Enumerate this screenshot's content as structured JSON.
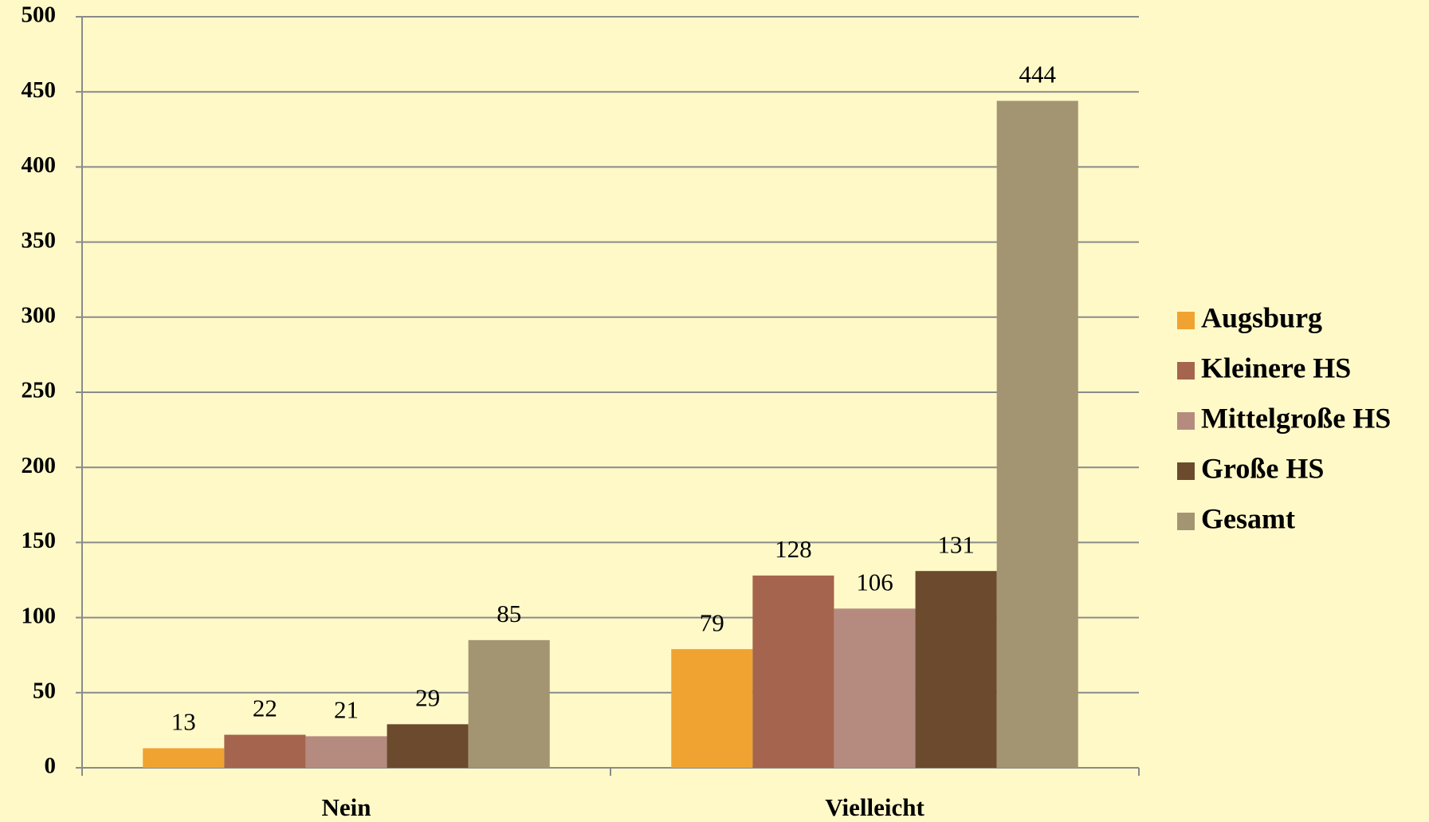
{
  "chart_data": {
    "type": "bar",
    "categories": [
      "Nein",
      "Vielleicht"
    ],
    "series": [
      {
        "name": "Augsburg",
        "color": "#f0a330",
        "values": [
          13,
          79
        ]
      },
      {
        "name": "Kleinere HS",
        "color": "#a5644e",
        "values": [
          22,
          128
        ]
      },
      {
        "name": "Mittelgroße HS",
        "color": "#b58b80",
        "values": [
          21,
          106
        ]
      },
      {
        "name": "Große HS",
        "color": "#6b4a2e",
        "values": [
          29,
          131
        ]
      },
      {
        "name": "Gesamt",
        "color": "#a39572",
        "values": [
          85,
          444
        ]
      }
    ],
    "ylim": [
      0,
      500
    ],
    "yticks": [
      0,
      50,
      100,
      150,
      200,
      250,
      300,
      350,
      400,
      450,
      500
    ],
    "grid": true,
    "legend": "right"
  }
}
